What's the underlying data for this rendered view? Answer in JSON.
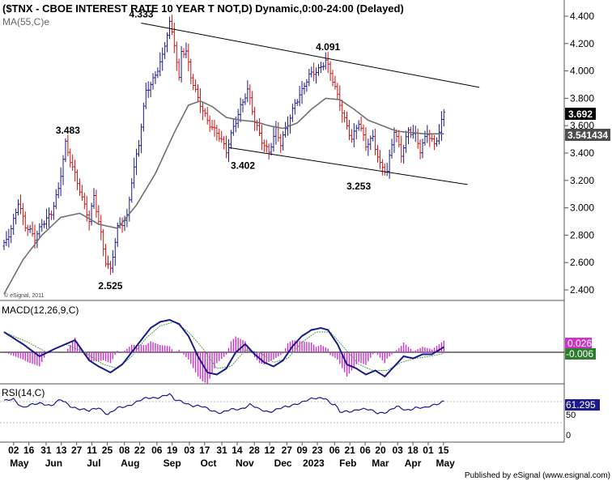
{
  "title": "($TNX - CBOE INTEREST RATE 10 YEAR T NOT,D) Dynamic,0:00-24:00 (Delayed)",
  "footer": "Published by eSignal (www.esignal.com)",
  "copyright": "© eSignal, 2011",
  "colors": {
    "up": "#1a1a8c",
    "down": "#cc1111",
    "ma": "#707070",
    "macd": "#1a1a8c",
    "signal": "#4aa04a",
    "hist": "#cc33cc",
    "rsi": "#1a1a8c",
    "last_price_bg": "#000000",
    "ma_price_bg": "#4d4d4d"
  },
  "chart_data": [
    {
      "type": "candlestick",
      "legend": "MA(55,C)e",
      "y_ticks": [
        "4.400",
        "4.200",
        "4.000",
        "3.800",
        "3.600",
        "3.400",
        "3.200",
        "3.000",
        "2.800",
        "2.600",
        "2.400"
      ],
      "ylim": [
        2.35,
        4.45
      ],
      "last_price": "3.692",
      "ma_value": "3.541434",
      "annotations": [
        {
          "text": "4.333",
          "x": 58,
          "y": 4.333
        },
        {
          "text": "4.091",
          "x": 137,
          "y": 4.091
        },
        {
          "text": "3.483",
          "x": 27,
          "y": 3.483
        },
        {
          "text": "3.402",
          "x": 101,
          "y": 3.402
        },
        {
          "text": "3.253",
          "x": 150,
          "y": 3.253
        },
        {
          "text": "2.525",
          "x": 45,
          "y": 2.525
        }
      ],
      "trendlines": [
        {
          "name": "upper",
          "x": [
            58,
            201
          ],
          "y": [
            4.35,
            3.88
          ]
        },
        {
          "name": "lower",
          "x": [
            95,
            196
          ],
          "y": [
            3.44,
            3.17
          ]
        }
      ],
      "price_anchors": [
        [
          0,
          2.72
        ],
        [
          3,
          2.86
        ],
        [
          6,
          3.05
        ],
        [
          9,
          2.85
        ],
        [
          13,
          2.78
        ],
        [
          16,
          2.9
        ],
        [
          20,
          2.95
        ],
        [
          23,
          3.12
        ],
        [
          26,
          3.48
        ],
        [
          30,
          3.25
        ],
        [
          33,
          3.05
        ],
        [
          36,
          2.9
        ],
        [
          38,
          3.1
        ],
        [
          41,
          2.82
        ],
        [
          43,
          2.6
        ],
        [
          45,
          2.53
        ],
        [
          48,
          2.85
        ],
        [
          52,
          2.95
        ],
        [
          54,
          3.2
        ],
        [
          57,
          3.45
        ],
        [
          60,
          3.85
        ],
        [
          63,
          3.95
        ],
        [
          67,
          4.1
        ],
        [
          70,
          4.333
        ],
        [
          72,
          4.2
        ],
        [
          74,
          3.95
        ],
        [
          75,
          4.16
        ],
        [
          77,
          4.15
        ],
        [
          79,
          3.95
        ],
        [
          82,
          3.78
        ],
        [
          86,
          3.65
        ],
        [
          90,
          3.55
        ],
        [
          94,
          3.4
        ],
        [
          97,
          3.6
        ],
        [
          100,
          3.75
        ],
        [
          103,
          3.85
        ],
        [
          106,
          3.62
        ],
        [
          109,
          3.5
        ],
        [
          112,
          3.42
        ],
        [
          115,
          3.56
        ],
        [
          117,
          3.45
        ],
        [
          120,
          3.62
        ],
        [
          123,
          3.78
        ],
        [
          126,
          3.85
        ],
        [
          129,
          3.95
        ],
        [
          133,
          4.02
        ],
        [
          136,
          4.091
        ],
        [
          138,
          3.98
        ],
        [
          141,
          3.8
        ],
        [
          144,
          3.65
        ],
        [
          147,
          3.52
        ],
        [
          150,
          3.62
        ],
        [
          153,
          3.44
        ],
        [
          156,
          3.52
        ],
        [
          159,
          3.33
        ],
        [
          162,
          3.253
        ],
        [
          165,
          3.55
        ],
        [
          168,
          3.4
        ],
        [
          171,
          3.58
        ],
        [
          174,
          3.52
        ],
        [
          176,
          3.4
        ],
        [
          179,
          3.55
        ],
        [
          182,
          3.48
        ],
        [
          184,
          3.56
        ],
        [
          186,
          3.692
        ]
      ],
      "ma_anchors": [
        [
          0,
          2.37
        ],
        [
          8,
          2.62
        ],
        [
          16,
          2.8
        ],
        [
          24,
          2.93
        ],
        [
          32,
          2.96
        ],
        [
          40,
          2.88
        ],
        [
          48,
          2.85
        ],
        [
          56,
          3.02
        ],
        [
          64,
          3.25
        ],
        [
          72,
          3.55
        ],
        [
          78,
          3.75
        ],
        [
          83,
          3.78
        ],
        [
          88,
          3.74
        ],
        [
          94,
          3.66
        ],
        [
          100,
          3.64
        ],
        [
          106,
          3.63
        ],
        [
          112,
          3.6
        ],
        [
          118,
          3.58
        ],
        [
          124,
          3.62
        ],
        [
          130,
          3.72
        ],
        [
          136,
          3.8
        ],
        [
          142,
          3.79
        ],
        [
          148,
          3.72
        ],
        [
          154,
          3.64
        ],
        [
          160,
          3.6
        ],
        [
          166,
          3.56
        ],
        [
          172,
          3.55
        ],
        [
          178,
          3.54
        ],
        [
          186,
          3.541
        ]
      ]
    },
    {
      "type": "line",
      "legend": "MACD(12,26,9,C)",
      "readouts": [
        "0.026",
        "-0.006"
      ],
      "macd_anchors": [
        [
          0,
          0.1
        ],
        [
          8,
          0.04
        ],
        [
          15,
          -0.02
        ],
        [
          22,
          0.02
        ],
        [
          30,
          0.06
        ],
        [
          36,
          -0.04
        ],
        [
          40,
          -0.07
        ],
        [
          45,
          -0.1
        ],
        [
          50,
          -0.06
        ],
        [
          56,
          0.03
        ],
        [
          62,
          0.12
        ],
        [
          66,
          0.15
        ],
        [
          70,
          0.16
        ],
        [
          74,
          0.14
        ],
        [
          78,
          0.08
        ],
        [
          82,
          -0.02
        ],
        [
          86,
          -0.1
        ],
        [
          90,
          -0.11
        ],
        [
          94,
          -0.08
        ],
        [
          98,
          0.0
        ],
        [
          102,
          0.04
        ],
        [
          106,
          -0.01
        ],
        [
          110,
          -0.05
        ],
        [
          114,
          -0.07
        ],
        [
          118,
          -0.04
        ],
        [
          122,
          0.03
        ],
        [
          126,
          0.08
        ],
        [
          130,
          0.11
        ],
        [
          134,
          0.12
        ],
        [
          137,
          0.11
        ],
        [
          141,
          0.04
        ],
        [
          145,
          -0.06
        ],
        [
          149,
          -0.08
        ],
        [
          153,
          -0.11
        ],
        [
          157,
          -0.09
        ],
        [
          161,
          -0.12
        ],
        [
          165,
          -0.07
        ],
        [
          169,
          -0.02
        ],
        [
          173,
          -0.03
        ],
        [
          177,
          -0.01
        ],
        [
          181,
          -0.01
        ],
        [
          186,
          0.026
        ]
      ],
      "signal_anchors": [
        [
          0,
          0.1
        ],
        [
          10,
          0.05
        ],
        [
          18,
          0.0
        ],
        [
          26,
          0.04
        ],
        [
          34,
          0.0
        ],
        [
          42,
          -0.06
        ],
        [
          48,
          -0.08
        ],
        [
          54,
          -0.02
        ],
        [
          60,
          0.07
        ],
        [
          66,
          0.13
        ],
        [
          72,
          0.15
        ],
        [
          78,
          0.1
        ],
        [
          84,
          0.02
        ],
        [
          90,
          -0.08
        ],
        [
          96,
          -0.07
        ],
        [
          102,
          0.01
        ],
        [
          108,
          0.0
        ],
        [
          114,
          -0.05
        ],
        [
          120,
          -0.03
        ],
        [
          126,
          0.05
        ],
        [
          132,
          0.1
        ],
        [
          138,
          0.1
        ],
        [
          144,
          0.02
        ],
        [
          150,
          -0.06
        ],
        [
          156,
          -0.09
        ],
        [
          162,
          -0.09
        ],
        [
          168,
          -0.05
        ],
        [
          174,
          -0.03
        ],
        [
          180,
          -0.02
        ],
        [
          186,
          -0.006
        ]
      ]
    },
    {
      "type": "line",
      "legend": "RSI(14,C)",
      "y_ticks": [
        "50",
        "0"
      ],
      "readout": "61.295",
      "rsi_anchors": [
        [
          0,
          60
        ],
        [
          4,
          64
        ],
        [
          8,
          52
        ],
        [
          12,
          55
        ],
        [
          16,
          58
        ],
        [
          20,
          55
        ],
        [
          24,
          62
        ],
        [
          28,
          54
        ],
        [
          32,
          50
        ],
        [
          36,
          46
        ],
        [
          40,
          52
        ],
        [
          44,
          42
        ],
        [
          48,
          50
        ],
        [
          52,
          54
        ],
        [
          56,
          60
        ],
        [
          60,
          64
        ],
        [
          64,
          66
        ],
        [
          68,
          69
        ],
        [
          70,
          70
        ],
        [
          72,
          62
        ],
        [
          76,
          60
        ],
        [
          80,
          54
        ],
        [
          84,
          52
        ],
        [
          88,
          48
        ],
        [
          92,
          44
        ],
        [
          96,
          48
        ],
        [
          100,
          50
        ],
        [
          104,
          56
        ],
        [
          108,
          48
        ],
        [
          112,
          46
        ],
        [
          116,
          50
        ],
        [
          120,
          52
        ],
        [
          124,
          58
        ],
        [
          128,
          62
        ],
        [
          132,
          64
        ],
        [
          136,
          66
        ],
        [
          138,
          58
        ],
        [
          140,
          56
        ],
        [
          142,
          44
        ],
        [
          146,
          46
        ],
        [
          150,
          50
        ],
        [
          154,
          48
        ],
        [
          158,
          44
        ],
        [
          162,
          46
        ],
        [
          166,
          52
        ],
        [
          170,
          48
        ],
        [
          174,
          52
        ],
        [
          178,
          50
        ],
        [
          182,
          56
        ],
        [
          186,
          61.3
        ]
      ]
    }
  ],
  "x_axis": {
    "days": [
      {
        "label": "02",
        "x": 5
      },
      {
        "label": "16",
        "x": 13
      },
      {
        "label": "31",
        "x": 22
      },
      {
        "label": "13",
        "x": 30
      },
      {
        "label": "27",
        "x": 38
      },
      {
        "label": "11",
        "x": 46
      },
      {
        "label": "25",
        "x": 54
      },
      {
        "label": "08",
        "x": 63
      },
      {
        "label": "22",
        "x": 71
      },
      {
        "label": "06",
        "x": 80
      },
      {
        "label": "19",
        "x": 88
      },
      {
        "label": "03",
        "x": 97
      },
      {
        "label": "17",
        "x": 105
      },
      {
        "label": "31",
        "x": 114
      },
      {
        "label": "14",
        "x": 122
      },
      {
        "label": "28",
        "x": 131
      },
      {
        "label": "12",
        "x": 139
      },
      {
        "label": "27",
        "x": 148
      },
      {
        "label": "09",
        "x": 156
      },
      {
        "label": "23",
        "x": 164
      },
      {
        "label": "06",
        "x": 173
      },
      {
        "label": "21",
        "x": 181
      },
      {
        "label": "06",
        "x": 189
      },
      {
        "label": "20",
        "x": 197
      },
      {
        "label": "03",
        "x": 206
      },
      {
        "label": "18",
        "x": 214
      },
      {
        "label": "01",
        "x": 222
      },
      {
        "label": "15",
        "x": 230
      }
    ],
    "months": [
      {
        "label": "May",
        "x": 8
      },
      {
        "label": "Jun",
        "x": 26
      },
      {
        "label": "Jul",
        "x": 47
      },
      {
        "label": "Aug",
        "x": 66
      },
      {
        "label": "Sep",
        "x": 88
      },
      {
        "label": "Oct",
        "x": 107
      },
      {
        "label": "Nov",
        "x": 126
      },
      {
        "label": "Dec",
        "x": 146
      },
      {
        "label": "2023",
        "x": 162
      },
      {
        "label": "Feb",
        "x": 180
      },
      {
        "label": "Mar",
        "x": 197
      },
      {
        "label": "Apr",
        "x": 214
      },
      {
        "label": "May",
        "x": 231
      }
    ]
  }
}
